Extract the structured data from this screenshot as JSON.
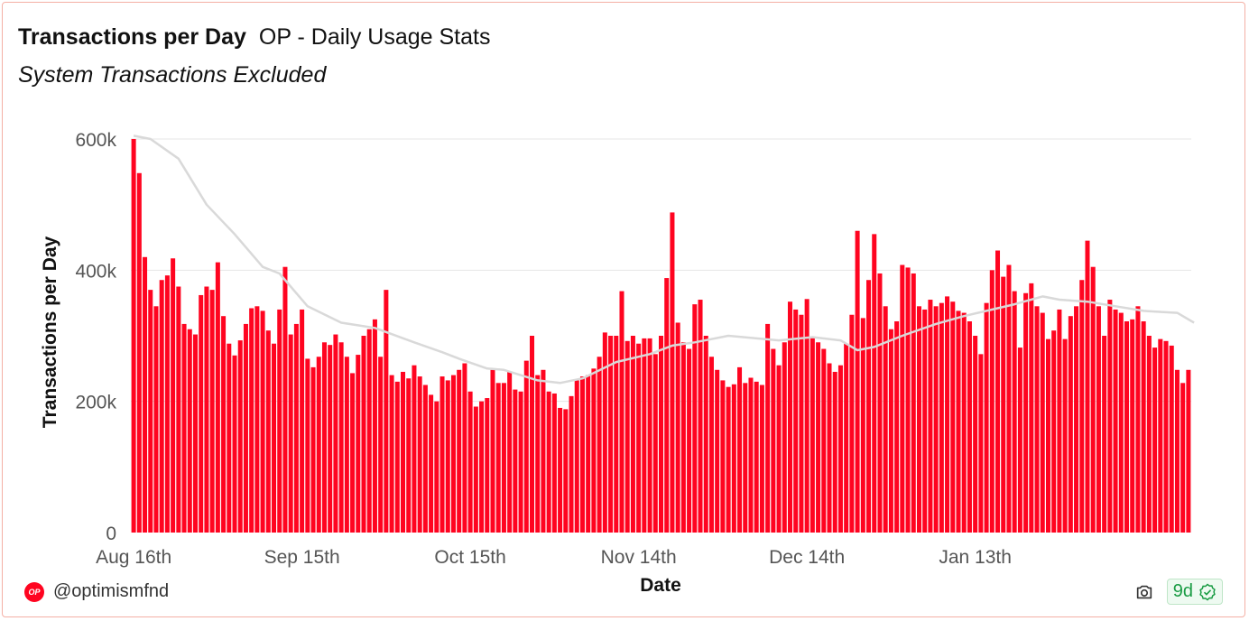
{
  "header": {
    "title": "Transactions per Day",
    "subtitle": "OP - Daily Usage Stats",
    "note": "System Transactions Excluded"
  },
  "footer": {
    "handle": "@optimismfnd",
    "logo_text": "OP",
    "age_badge": "9d"
  },
  "colors": {
    "bar": "#ff0420",
    "avg_line": "#d9d9d9",
    "grid": "#e6e6e6"
  },
  "icons": [
    "op-logo-icon",
    "camera-icon",
    "verified-check-icon"
  ],
  "chart_data": {
    "type": "bar",
    "xlabel": "Date",
    "ylabel": "Transactions per Day",
    "ylim": [
      0,
      600000
    ],
    "yticks": [
      0,
      200000,
      400000,
      600000
    ],
    "ytick_labels": [
      "0",
      "200k",
      "400k",
      "600k"
    ],
    "x_start": "2022-08-16",
    "xticks": [
      {
        "index": 0,
        "label": "Aug 16th"
      },
      {
        "index": 30,
        "label": "Sep 15th"
      },
      {
        "index": 60,
        "label": "Oct 15th"
      },
      {
        "index": 90,
        "label": "Nov 14th"
      },
      {
        "index": 120,
        "label": "Dec 14th"
      },
      {
        "index": 150,
        "label": "Jan 13th"
      }
    ],
    "grid": true,
    "series": [
      {
        "name": "Transactions per Day",
        "kind": "bar",
        "values": [
          600000,
          548000,
          420000,
          370000,
          345000,
          385000,
          392000,
          418000,
          375000,
          318000,
          310000,
          302000,
          362000,
          375000,
          370000,
          412000,
          330000,
          288000,
          270000,
          293000,
          318000,
          342000,
          345000,
          338000,
          308000,
          288000,
          340000,
          405000,
          302000,
          318000,
          340000,
          265000,
          252000,
          268000,
          290000,
          286000,
          302000,
          290000,
          268000,
          243000,
          271000,
          300000,
          310000,
          325000,
          268000,
          370000,
          240000,
          230000,
          245000,
          235000,
          255000,
          238000,
          225000,
          210000,
          200000,
          238000,
          232000,
          240000,
          248000,
          258000,
          215000,
          192000,
          200000,
          205000,
          248000,
          228000,
          228000,
          245000,
          218000,
          215000,
          262000,
          300000,
          240000,
          248000,
          215000,
          212000,
          190000,
          188000,
          208000,
          232000,
          238000,
          240000,
          250000,
          268000,
          305000,
          300000,
          300000,
          368000,
          292000,
          300000,
          288000,
          296000,
          296000,
          272000,
          300000,
          388000,
          488000,
          320000,
          290000,
          280000,
          348000,
          355000,
          300000,
          268000,
          248000,
          232000,
          222000,
          226000,
          252000,
          228000,
          236000,
          230000,
          225000,
          318000,
          280000,
          255000,
          290000,
          352000,
          340000,
          332000,
          356000,
          298000,
          290000,
          280000,
          258000,
          245000,
          255000,
          288000,
          332000,
          460000,
          327000,
          385000,
          455000,
          395000,
          345000,
          310000,
          322000,
          408000,
          404000,
          395000,
          345000,
          340000,
          355000,
          345000,
          350000,
          360000,
          352000,
          338000,
          335000,
          322000,
          300000,
          272000,
          350000,
          400000,
          430000,
          390000,
          408000,
          368000,
          282000,
          365000,
          380000,
          345000,
          335000,
          295000,
          308000,
          340000,
          295000,
          330000,
          345000,
          385000,
          445000,
          405000,
          345000,
          300000,
          355000,
          340000,
          335000,
          322000,
          325000,
          345000,
          322000,
          300000,
          282000,
          295000,
          292000,
          285000,
          248000,
          228000,
          248000
        ]
      },
      {
        "name": "Moving Average",
        "kind": "line",
        "points": [
          [
            0,
            605000
          ],
          [
            3,
            600000
          ],
          [
            8,
            570000
          ],
          [
            13,
            500000
          ],
          [
            18,
            455000
          ],
          [
            23,
            405000
          ],
          [
            26,
            395000
          ],
          [
            31,
            345000
          ],
          [
            37,
            320000
          ],
          [
            43,
            312000
          ],
          [
            50,
            290000
          ],
          [
            55,
            275000
          ],
          [
            58,
            265000
          ],
          [
            63,
            250000
          ],
          [
            66,
            248000
          ],
          [
            72,
            232000
          ],
          [
            76,
            228000
          ],
          [
            80,
            235000
          ],
          [
            86,
            260000
          ],
          [
            92,
            272000
          ],
          [
            96,
            285000
          ],
          [
            100,
            290000
          ],
          [
            106,
            300000
          ],
          [
            115,
            293000
          ],
          [
            121,
            298000
          ],
          [
            126,
            293000
          ],
          [
            129,
            278000
          ],
          [
            132,
            283000
          ],
          [
            137,
            300000
          ],
          [
            143,
            318000
          ],
          [
            148,
            330000
          ],
          [
            152,
            338000
          ],
          [
            157,
            348000
          ],
          [
            162,
            360000
          ],
          [
            165,
            355000
          ],
          [
            170,
            352000
          ],
          [
            175,
            345000
          ],
          [
            180,
            338000
          ],
          [
            186,
            335000
          ],
          [
            189,
            320000
          ]
        ]
      }
    ]
  }
}
